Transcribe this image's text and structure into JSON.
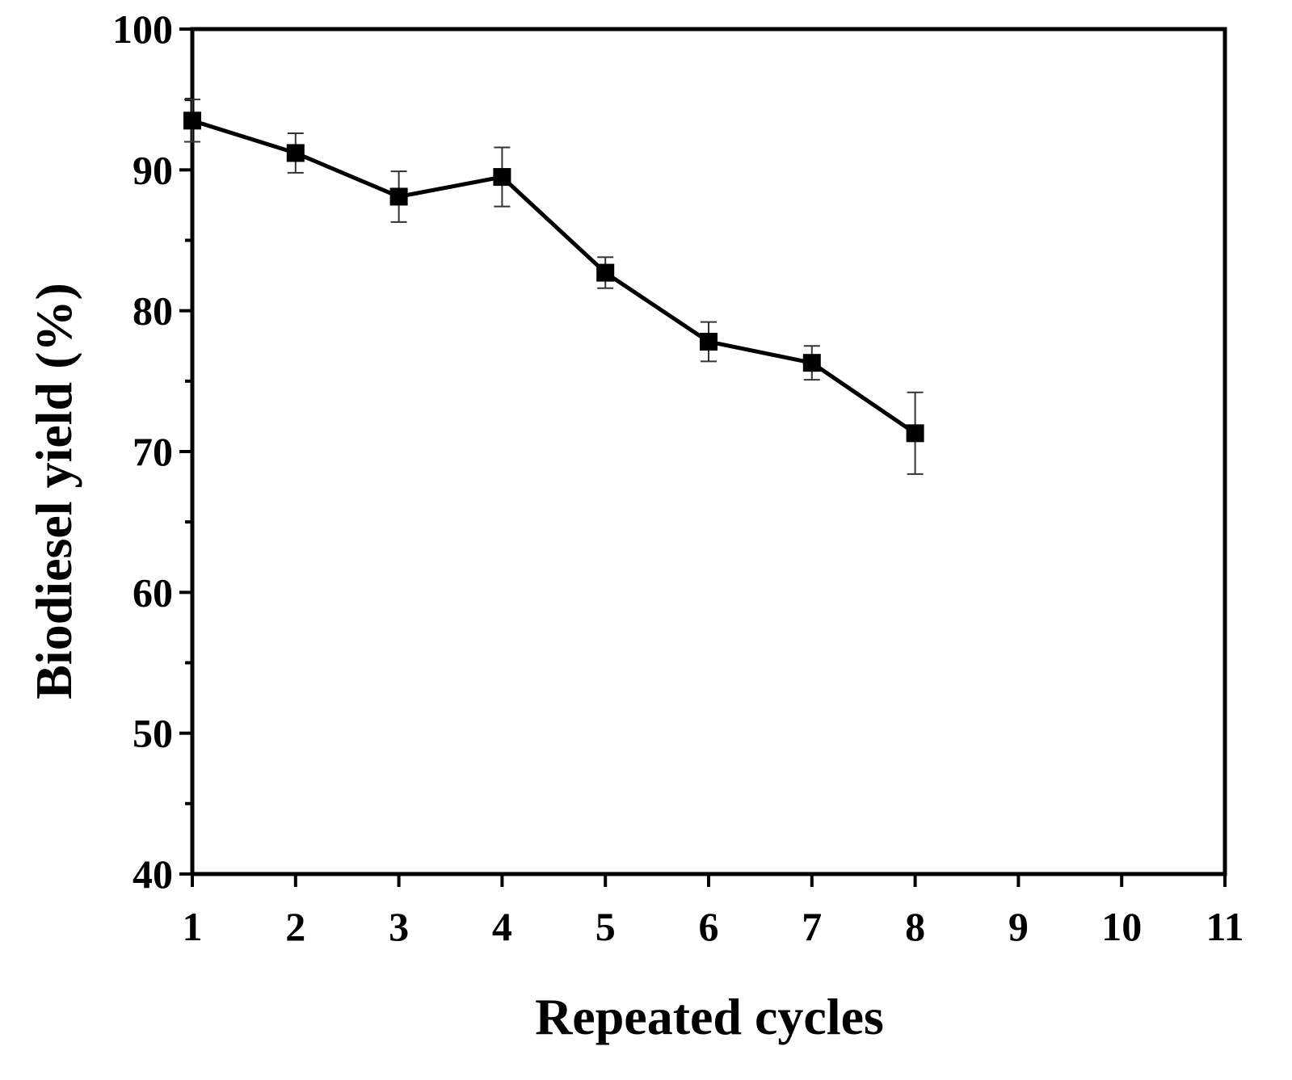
{
  "chart_data": {
    "type": "line",
    "title": "",
    "xlabel": "Repeated cycles",
    "ylabel": "Biodiesel yield (%)",
    "xlim": [
      1,
      11
    ],
    "ylim": [
      40,
      100
    ],
    "x_ticks": [
      "1",
      "2",
      "3",
      "4",
      "5",
      "6",
      "7",
      "8",
      "9",
      "10",
      "11"
    ],
    "y_ticks": [
      "40",
      "50",
      "60",
      "70",
      "80",
      "90",
      "100"
    ],
    "grid": false,
    "legend": "none",
    "series": [
      {
        "name": "Biodiesel yield",
        "marker": "square",
        "color": "#000000",
        "x": [
          1,
          2,
          3,
          4,
          5,
          6,
          7,
          8
        ],
        "y": [
          93.5,
          91.2,
          88.1,
          89.5,
          82.7,
          77.8,
          76.3,
          71.3
        ],
        "error": [
          1.5,
          1.4,
          1.8,
          2.1,
          1.1,
          1.4,
          1.2,
          2.9
        ]
      }
    ]
  }
}
